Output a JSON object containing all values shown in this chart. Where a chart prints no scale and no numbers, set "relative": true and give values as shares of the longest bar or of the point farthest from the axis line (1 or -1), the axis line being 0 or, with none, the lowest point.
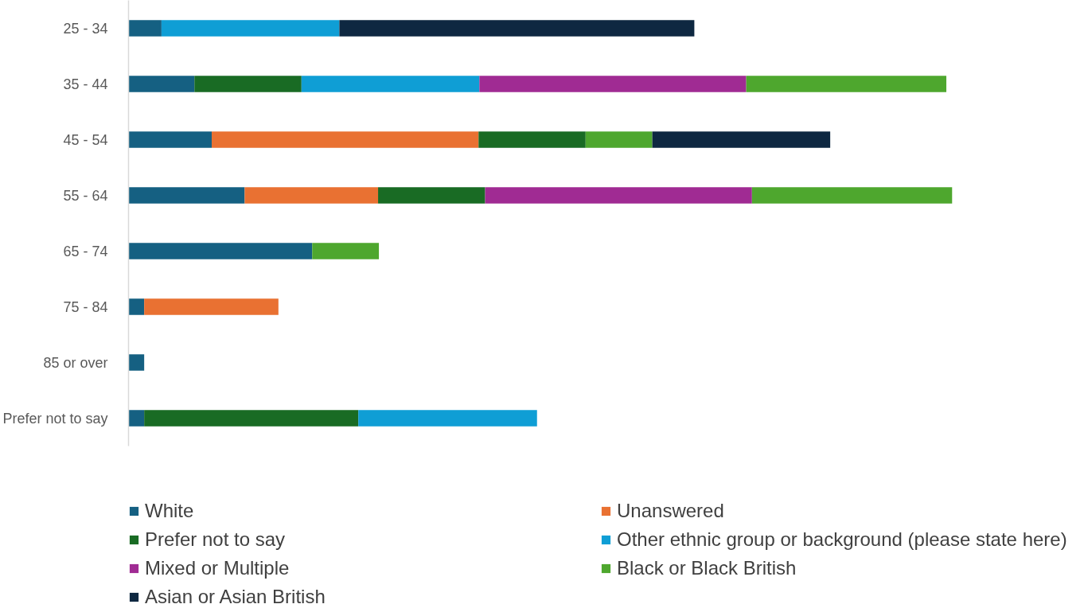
{
  "chart_data": {
    "type": "bar",
    "orientation": "horizontal",
    "stacked": true,
    "relative": true,
    "legend": "bottom",
    "categories": [
      "25 - 34",
      "35 - 44",
      "45 - 54",
      "55 - 64",
      "65 - 74",
      "75 - 84",
      "85 or over",
      "Prefer not to say"
    ],
    "series": [
      {
        "name": "White",
        "color": "#156082",
        "values": [
          0.04,
          0.08,
          0.101,
          0.141,
          0.223,
          0.019,
          0.019,
          0.019
        ]
      },
      {
        "name": "Unanswered",
        "color": "#e97132",
        "values": [
          null,
          null,
          0.324,
          0.162,
          null,
          0.163,
          null,
          null
        ]
      },
      {
        "name": "Prefer not to say",
        "color": "#196b24",
        "values": [
          null,
          0.13,
          0.13,
          0.13,
          null,
          null,
          null,
          0.26
        ]
      },
      {
        "name": "Other ethnic group or background (please state here)",
        "color": "#0f9ed5",
        "values": [
          0.216,
          0.216,
          null,
          null,
          null,
          null,
          null,
          0.217
        ]
      },
      {
        "name": "Mixed or Multiple",
        "color": "#a02b93",
        "values": [
          null,
          0.324,
          null,
          0.324,
          null,
          null,
          null,
          null
        ]
      },
      {
        "name": "Black or Black British",
        "color": "#4ea72e",
        "values": [
          null,
          0.243,
          0.081,
          0.243,
          0.081,
          null,
          null,
          null
        ]
      },
      {
        "name": "Asian or Asian British",
        "color": "#0e2841",
        "values": [
          0.431,
          null,
          0.216,
          null,
          null,
          null,
          null,
          null
        ]
      }
    ]
  }
}
